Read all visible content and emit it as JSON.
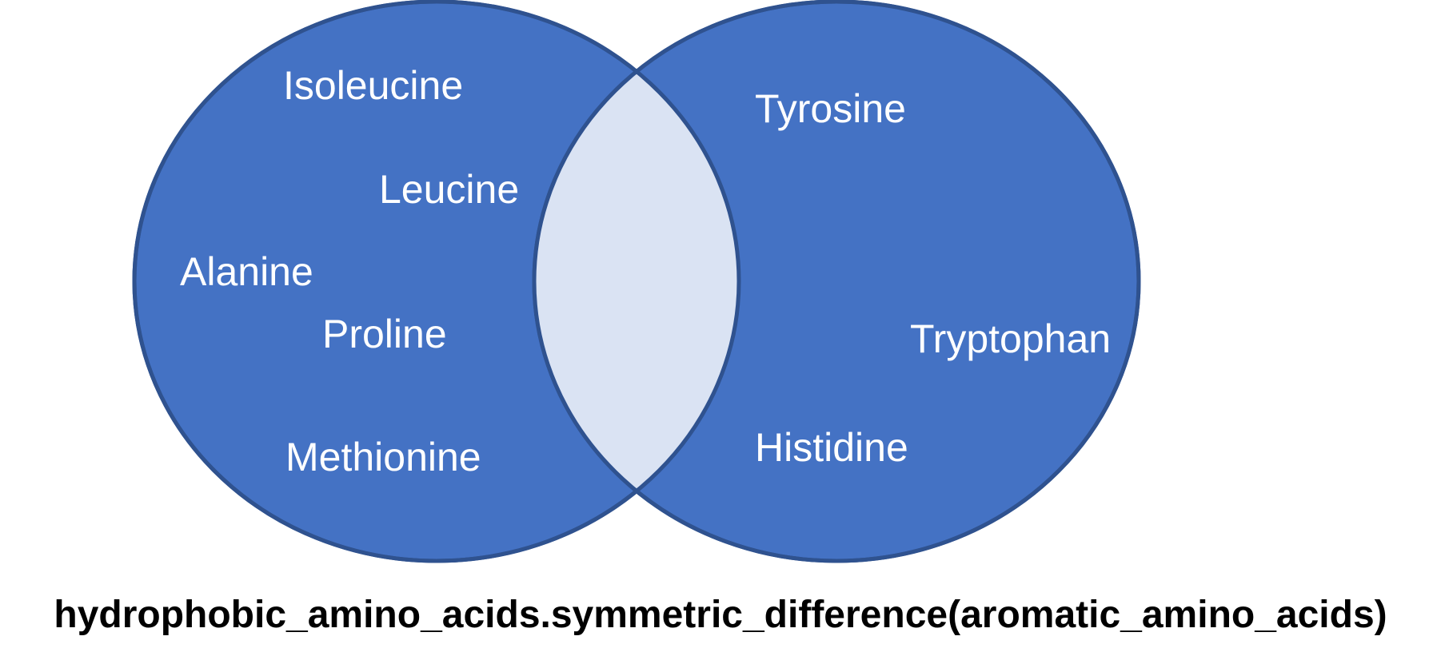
{
  "diagram": {
    "type": "venn-symmetric-difference",
    "colors": {
      "set_fill": "#4472c4",
      "set_stroke": "#2f528f",
      "intersection_fill": "#dae3f3",
      "label_text": "#ffffff",
      "caption_text": "#000000"
    },
    "left_set": {
      "members": [
        "Isoleucine",
        "Leucine",
        "Alanine",
        "Proline",
        "Methionine"
      ]
    },
    "right_set": {
      "members": [
        "Tyrosine",
        "Tryptophan",
        "Histidine"
      ]
    },
    "caption": "hydrophobic_amino_acids.symmetric_difference(aromatic_amino_acids)"
  }
}
